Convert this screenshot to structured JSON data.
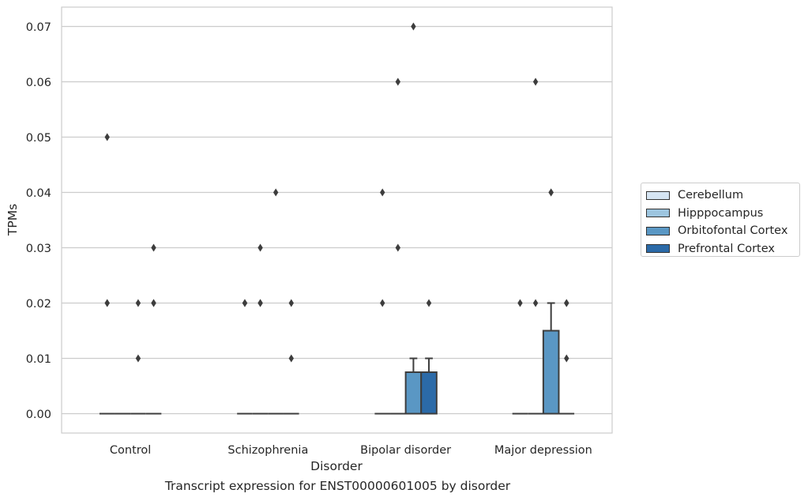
{
  "chart_data": {
    "type": "box",
    "title": "",
    "caption": "Transcript expression for ENST00000601005 by disorder",
    "xlabel": "Disorder",
    "ylabel": "TPMs",
    "ylim": [
      -0.0035,
      0.0735
    ],
    "yticks": [
      "0.00",
      "0.01",
      "0.02",
      "0.03",
      "0.04",
      "0.05",
      "0.06",
      "0.07"
    ],
    "grid": true,
    "legend_position": "right",
    "categories": [
      "Control",
      "Schizophrenia",
      "Bipolar disorder",
      "Major depression"
    ],
    "series": [
      {
        "name": "Cerebellum",
        "color": "#d6e5f3",
        "boxes": [
          {
            "q1": 0,
            "median": 0,
            "q3": 0,
            "whisker_low": 0,
            "whisker_high": 0,
            "outliers": [
              0.02,
              0.02,
              0.05
            ]
          },
          {
            "q1": 0,
            "median": 0,
            "q3": 0,
            "whisker_low": 0,
            "whisker_high": 0,
            "outliers": [
              0.02,
              0.02
            ]
          },
          {
            "q1": 0,
            "median": 0,
            "q3": 0,
            "whisker_low": 0,
            "whisker_high": 0,
            "outliers": [
              0.02,
              0.04
            ]
          },
          {
            "q1": 0,
            "median": 0,
            "q3": 0,
            "whisker_low": 0,
            "whisker_high": 0,
            "outliers": [
              0.02
            ]
          }
        ]
      },
      {
        "name": "Hipppocampus",
        "color": "#9dc5df",
        "boxes": [
          {
            "q1": 0,
            "median": 0,
            "q3": 0,
            "whisker_low": 0,
            "whisker_high": 0,
            "outliers": []
          },
          {
            "q1": 0,
            "median": 0,
            "q3": 0,
            "whisker_low": 0,
            "whisker_high": 0,
            "outliers": [
              0.02,
              0.02,
              0.03
            ]
          },
          {
            "q1": 0,
            "median": 0,
            "q3": 0,
            "whisker_low": 0,
            "whisker_high": 0,
            "outliers": [
              0.03,
              0.06
            ]
          },
          {
            "q1": 0,
            "median": 0,
            "q3": 0,
            "whisker_low": 0,
            "whisker_high": 0,
            "outliers": [
              0.02,
              0.06
            ]
          }
        ]
      },
      {
        "name": "Orbitofontal Cortex",
        "color": "#5a97c4",
        "boxes": [
          {
            "q1": 0,
            "median": 0,
            "q3": 0,
            "whisker_low": 0,
            "whisker_high": 0,
            "outliers": [
              0.01,
              0.02
            ]
          },
          {
            "q1": 0,
            "median": 0,
            "q3": 0,
            "whisker_low": 0,
            "whisker_high": 0,
            "outliers": [
              0.04
            ]
          },
          {
            "q1": 0,
            "median": 0,
            "q3": 0.0075,
            "whisker_low": 0,
            "whisker_high": 0.01,
            "outliers": [
              0.07
            ]
          },
          {
            "q1": 0,
            "median": 0,
            "q3": 0.015,
            "whisker_low": 0,
            "whisker_high": 0.02,
            "outliers": [
              0.04,
              0.04
            ]
          }
        ]
      },
      {
        "name": "Prefrontal Cortex",
        "color": "#2b6aa8",
        "boxes": [
          {
            "q1": 0,
            "median": 0,
            "q3": 0,
            "whisker_low": 0,
            "whisker_high": 0,
            "outliers": [
              0.02,
              0.02,
              0.03
            ]
          },
          {
            "q1": 0,
            "median": 0,
            "q3": 0,
            "whisker_low": 0,
            "whisker_high": 0,
            "outliers": [
              0.01,
              0.02
            ]
          },
          {
            "q1": 0,
            "median": 0,
            "q3": 0.0075,
            "whisker_low": 0,
            "whisker_high": 0.01,
            "outliers": [
              0.02
            ]
          },
          {
            "q1": 0,
            "median": 0,
            "q3": 0,
            "whisker_low": 0,
            "whisker_high": 0,
            "outliers": [
              0.01,
              0.02,
              0.02
            ]
          }
        ]
      }
    ]
  }
}
